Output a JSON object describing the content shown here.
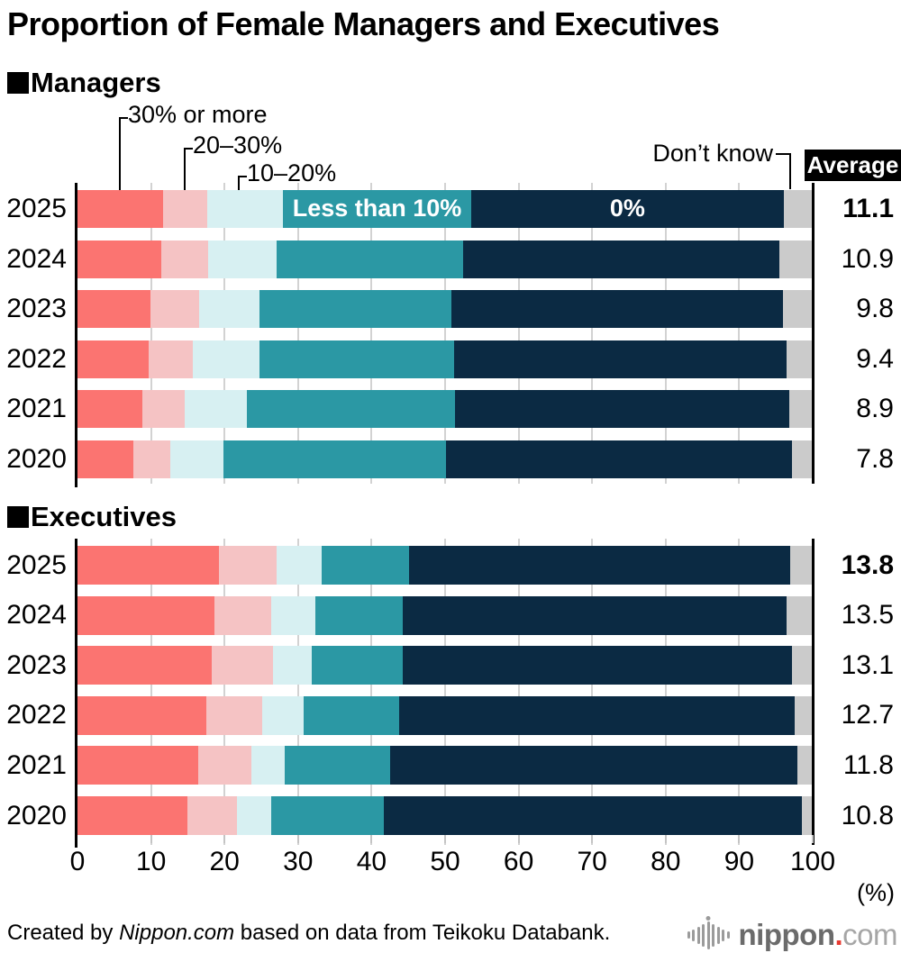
{
  "title": "Proportion of Female Managers and Executives",
  "sections": {
    "managers": {
      "marker": "■",
      "label": "Managers"
    },
    "executives": {
      "marker": "■",
      "label": "Executives"
    }
  },
  "legend": {
    "p30": "30% or more",
    "p20_30": "20–30%",
    "p10_20": "10–20%",
    "less10": "Less than 10%",
    "zero": "0%",
    "dont_know": "Don’t know",
    "average": "Average"
  },
  "axis": {
    "ticks": [
      "0",
      "10",
      "20",
      "30",
      "40",
      "50",
      "60",
      "70",
      "80",
      "90",
      "100"
    ],
    "unit": "(%)"
  },
  "footer": {
    "prefix": "Created by ",
    "source_italic": "Nippon.com",
    "suffix": " based on data from Teikoku Databank."
  },
  "logo": {
    "name": "nippon",
    "dot": ".",
    "tld": "com"
  },
  "colors": {
    "p30": "#fb7471",
    "p20_30": "#f5c3c4",
    "p10_20": "#d7f0f2",
    "less10": "#2b98a4",
    "zero": "#0b2a43",
    "dont_know": "#cbcbcb",
    "average_box_bg": "#000000",
    "average_box_text": "#ffffff"
  },
  "chart_data": [
    {
      "type": "bar",
      "stacked": true,
      "orientation": "horizontal",
      "group": "Managers",
      "xlim": [
        0,
        100
      ],
      "grid": true,
      "segment_labels": [
        "30% or more",
        "20–30%",
        "10–20%",
        "Less than 10%",
        "0%",
        "Don’t know"
      ],
      "categories": [
        "2025",
        "2024",
        "2023",
        "2022",
        "2021",
        "2020"
      ],
      "rows": [
        {
          "year": "2025",
          "values": [
            11.6,
            6.1,
            10.3,
            25.5,
            42.6,
            3.9
          ],
          "average": "11.1",
          "average_bold": true,
          "inbar_labels": {
            "3": "Less than 10%",
            "4": "0%"
          }
        },
        {
          "year": "2024",
          "values": [
            11.4,
            6.4,
            9.3,
            25.3,
            43.1,
            4.5
          ],
          "average": "10.9",
          "average_bold": false
        },
        {
          "year": "2023",
          "values": [
            9.9,
            6.6,
            8.3,
            26.1,
            45.0,
            4.1
          ],
          "average": "9.8",
          "average_bold": false
        },
        {
          "year": "2022",
          "values": [
            9.7,
            6.0,
            9.0,
            26.5,
            45.2,
            3.6
          ],
          "average": "9.4",
          "average_bold": false
        },
        {
          "year": "2021",
          "values": [
            8.8,
            5.8,
            8.5,
            28.3,
            45.4,
            3.2
          ],
          "average": "8.9",
          "average_bold": false
        },
        {
          "year": "2020",
          "values": [
            7.6,
            5.0,
            7.3,
            30.2,
            47.1,
            2.8
          ],
          "average": "7.8",
          "average_bold": false
        }
      ]
    },
    {
      "type": "bar",
      "stacked": true,
      "orientation": "horizontal",
      "group": "Executives",
      "xlim": [
        0,
        100
      ],
      "grid": true,
      "segment_labels": [
        "30% or more",
        "20–30%",
        "10–20%",
        "Less than 10%",
        "0%",
        "Don’t know"
      ],
      "categories": [
        "2025",
        "2024",
        "2023",
        "2022",
        "2021",
        "2020"
      ],
      "rows": [
        {
          "year": "2025",
          "values": [
            19.2,
            7.9,
            6.1,
            11.9,
            51.9,
            3.0
          ],
          "average": "13.8",
          "average_bold": true
        },
        {
          "year": "2024",
          "values": [
            18.6,
            7.7,
            6.0,
            12.0,
            52.1,
            3.6
          ],
          "average": "13.5",
          "average_bold": false
        },
        {
          "year": "2023",
          "values": [
            18.3,
            8.3,
            5.3,
            12.3,
            53.0,
            2.8
          ],
          "average": "13.1",
          "average_bold": false
        },
        {
          "year": "2022",
          "values": [
            17.5,
            7.6,
            5.7,
            13.0,
            53.7,
            2.5
          ],
          "average": "12.7",
          "average_bold": false
        },
        {
          "year": "2021",
          "values": [
            16.4,
            7.3,
            4.5,
            14.3,
            55.4,
            2.1
          ],
          "average": "11.8",
          "average_bold": false
        },
        {
          "year": "2020",
          "values": [
            14.9,
            6.8,
            4.7,
            15.3,
            56.8,
            1.5
          ],
          "average": "10.8",
          "average_bold": false
        }
      ]
    }
  ]
}
